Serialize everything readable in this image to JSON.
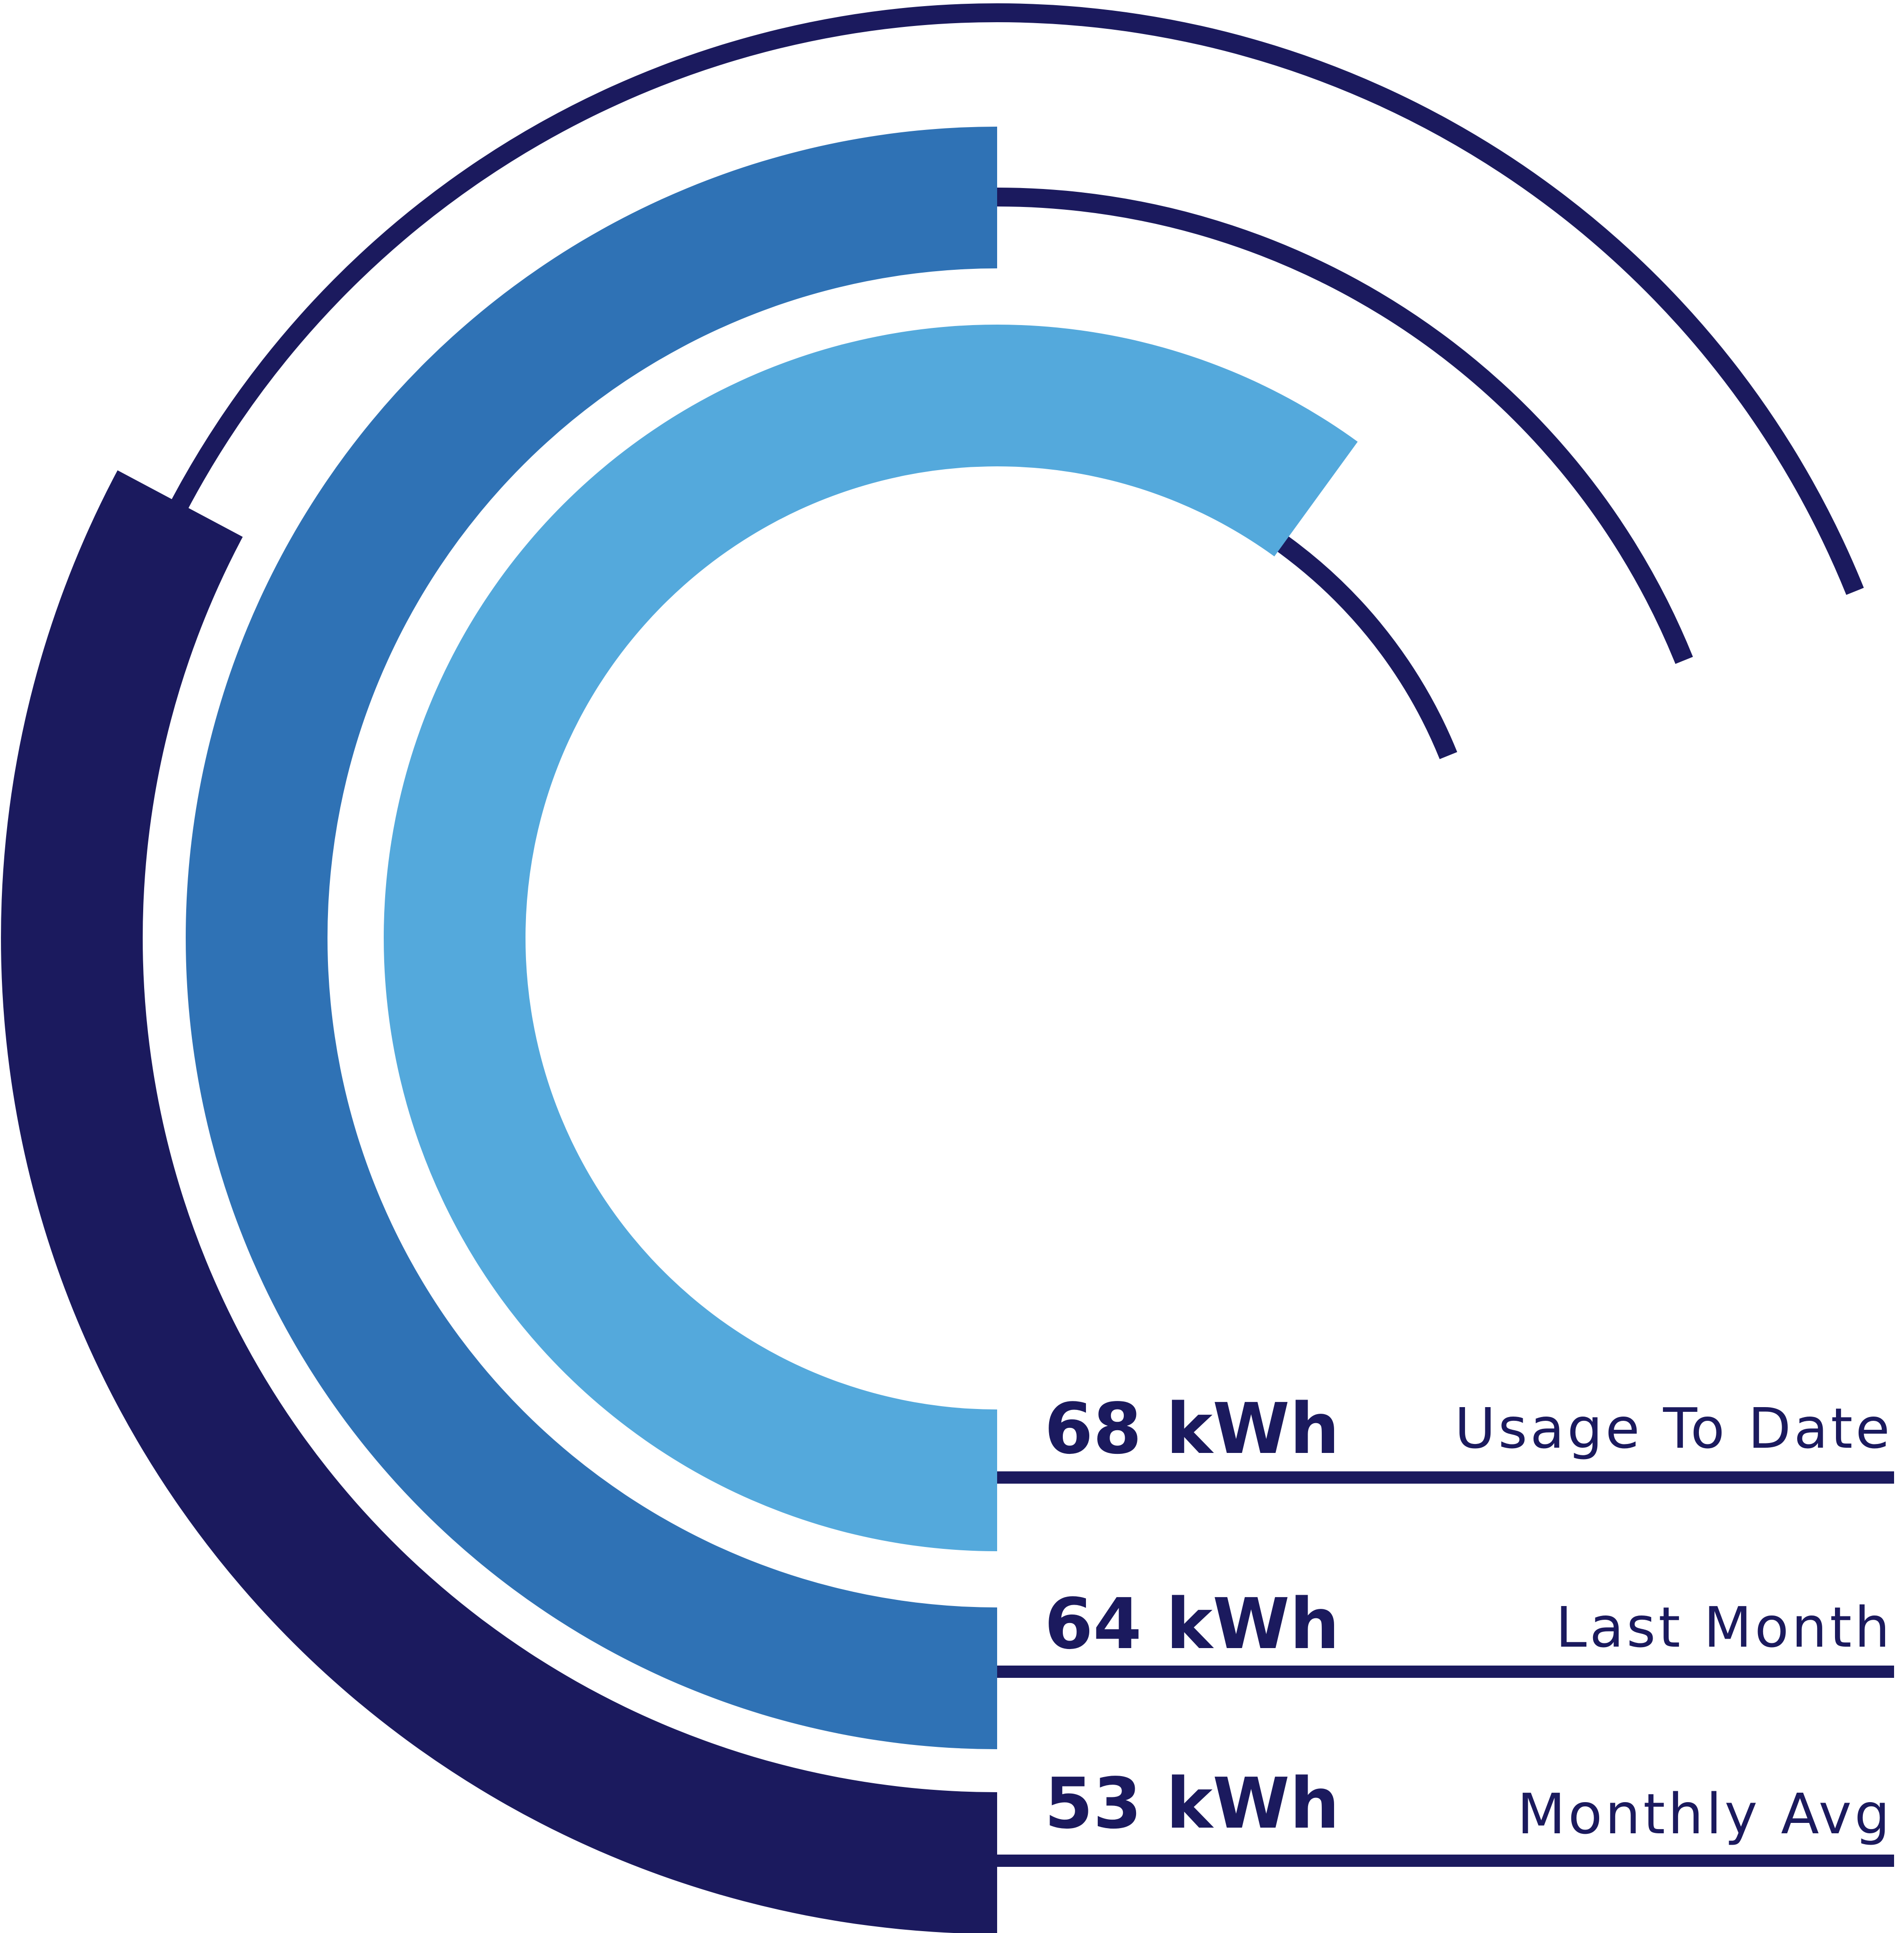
{
  "chart_data": {
    "type": "radial_bar",
    "unit": "kWh",
    "series": [
      {
        "name": "Usage To Date",
        "value": 68,
        "value_label": "68 kWh",
        "color": "#54a9dc"
      },
      {
        "name": "Last Month",
        "value": 64,
        "value_label": "64 kWh",
        "color": "#2f72b5"
      },
      {
        "name": "Monthly Avg",
        "value": 53,
        "value_label": "53 kWh",
        "color": "#1b1a5e"
      }
    ],
    "track_color": "#1b1a5e"
  },
  "colors": {
    "navy": "#1b1a5e",
    "mid_blue": "#2f72b5",
    "light_blue": "#54a9dc"
  }
}
